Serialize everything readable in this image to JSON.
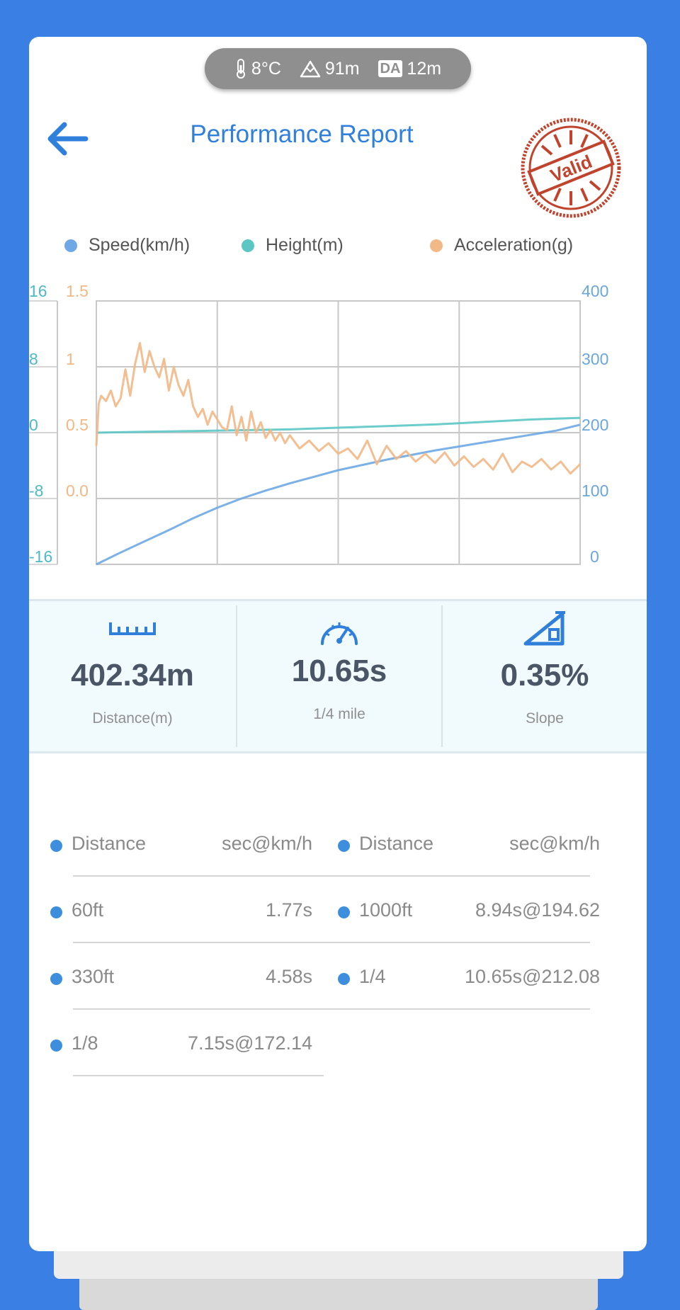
{
  "conditions": {
    "temperature": "8°C",
    "altitude": "91m",
    "density_altitude_badge": "DA",
    "density_altitude": "12m"
  },
  "header": {
    "title": "Performance Report",
    "stamp_text": "Valid"
  },
  "colors": {
    "speed": "#6ea8e6",
    "height": "#5cc6c5",
    "acceleration": "#f2b886",
    "accent": "#2f7fdb",
    "stamp": "#c0442d"
  },
  "chart_data": {
    "type": "line",
    "legend": [
      {
        "name": "Speed(km/h)",
        "color": "#6ea8e6"
      },
      {
        "name": "Height(m)",
        "color": "#5cc6c5"
      },
      {
        "name": "Acceleration(g)",
        "color": "#f2b886"
      }
    ],
    "axes": {
      "height_ticks": [
        "16",
        "8",
        "0",
        "-8",
        "-16"
      ],
      "height_range": [
        -16,
        16
      ],
      "acceleration_ticks": [
        "1.5",
        "1",
        "0.5",
        "0.0"
      ],
      "acceleration_range": [
        -0.5,
        1.5
      ],
      "speed_ticks": [
        "400",
        "300",
        "200",
        "100",
        "0"
      ],
      "speed_range": [
        0,
        400
      ]
    },
    "x_range": [
      0,
      1
    ],
    "grid": true,
    "series": [
      {
        "name": "Speed(km/h)",
        "axis": "speed",
        "x": [
          0,
          0.05,
          0.1,
          0.15,
          0.2,
          0.25,
          0.3,
          0.35,
          0.4,
          0.45,
          0.5,
          0.55,
          0.6,
          0.65,
          0.7,
          0.75,
          0.8,
          0.85,
          0.9,
          0.95,
          1.0
        ],
        "values": [
          0,
          18,
          35,
          52,
          70,
          86,
          100,
          112,
          123,
          133,
          143,
          151,
          159,
          166,
          173,
          179,
          185,
          191,
          197,
          203,
          212
        ]
      },
      {
        "name": "Height(m)",
        "axis": "height",
        "x": [
          0,
          0.1,
          0.2,
          0.3,
          0.4,
          0.5,
          0.6,
          0.7,
          0.8,
          0.9,
          1.0
        ],
        "values": [
          0,
          0.1,
          0.2,
          0.3,
          0.4,
          0.6,
          0.8,
          1.0,
          1.3,
          1.6,
          1.8
        ]
      },
      {
        "name": "Acceleration(g)",
        "axis": "acceleration",
        "x": [
          0,
          0.005,
          0.01,
          0.02,
          0.03,
          0.04,
          0.05,
          0.06,
          0.07,
          0.08,
          0.09,
          0.1,
          0.11,
          0.12,
          0.13,
          0.14,
          0.15,
          0.16,
          0.17,
          0.18,
          0.19,
          0.2,
          0.21,
          0.22,
          0.23,
          0.24,
          0.25,
          0.26,
          0.27,
          0.28,
          0.29,
          0.3,
          0.31,
          0.32,
          0.33,
          0.34,
          0.35,
          0.36,
          0.37,
          0.38,
          0.39,
          0.4,
          0.42,
          0.44,
          0.46,
          0.48,
          0.5,
          0.52,
          0.54,
          0.56,
          0.58,
          0.6,
          0.62,
          0.64,
          0.66,
          0.68,
          0.7,
          0.72,
          0.74,
          0.76,
          0.78,
          0.8,
          0.82,
          0.84,
          0.86,
          0.88,
          0.9,
          0.92,
          0.94,
          0.96,
          0.98,
          1.0
        ],
        "values": [
          0.4,
          0.72,
          0.78,
          0.74,
          0.82,
          0.7,
          0.76,
          0.98,
          0.78,
          1.02,
          1.18,
          0.96,
          1.12,
          1.0,
          0.92,
          1.06,
          0.82,
          1.0,
          0.86,
          0.78,
          0.9,
          0.7,
          0.62,
          0.68,
          0.56,
          0.66,
          0.6,
          0.54,
          0.52,
          0.7,
          0.48,
          0.62,
          0.44,
          0.66,
          0.5,
          0.58,
          0.46,
          0.52,
          0.44,
          0.5,
          0.42,
          0.48,
          0.38,
          0.44,
          0.36,
          0.42,
          0.34,
          0.38,
          0.3,
          0.44,
          0.26,
          0.4,
          0.3,
          0.36,
          0.28,
          0.34,
          0.27,
          0.35,
          0.25,
          0.32,
          0.24,
          0.3,
          0.22,
          0.34,
          0.2,
          0.28,
          0.24,
          0.3,
          0.22,
          0.28,
          0.19,
          0.26
        ]
      }
    ]
  },
  "metrics": [
    {
      "value": "402.34m",
      "label": "Distance(m)",
      "icon": "ruler-icon"
    },
    {
      "value": "10.65s",
      "label": "1/4 mile",
      "icon": "speedometer-icon"
    },
    {
      "value": "0.35%",
      "label": "Slope",
      "icon": "slope-icon"
    }
  ],
  "splits": {
    "headers": [
      {
        "name": "Distance",
        "value": "sec@km/h"
      },
      {
        "name": "Distance",
        "value": "sec@km/h"
      }
    ],
    "rows": [
      {
        "name": "60ft",
        "value": "1.77s"
      },
      {
        "name": "1000ft",
        "value": "8.94s@194.62"
      },
      {
        "name": "330ft",
        "value": "4.58s"
      },
      {
        "name": "1/4",
        "value": "10.65s@212.08"
      },
      {
        "name": "1/8",
        "value": "7.15s@172.14"
      }
    ]
  }
}
